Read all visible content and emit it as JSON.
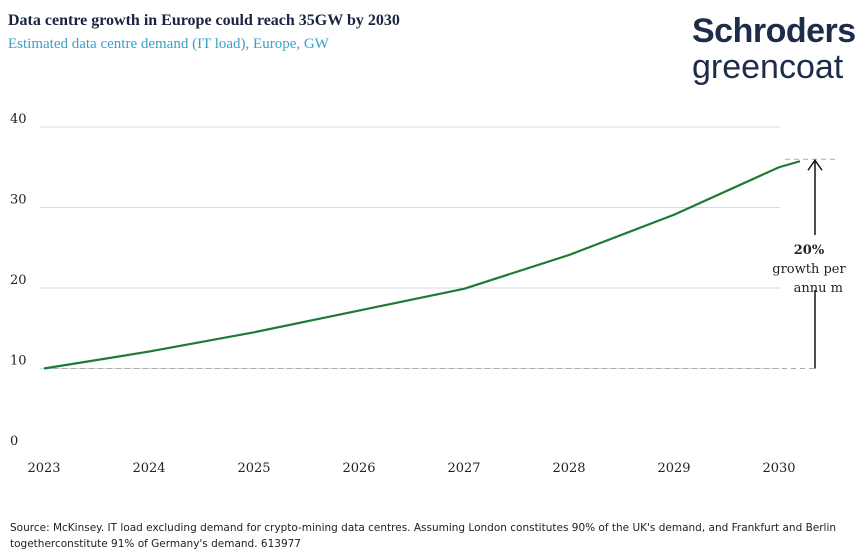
{
  "logo": {
    "line1": "Schroders",
    "line2": "greencoat"
  },
  "footer": {
    "source": "Source: McKinsey. IT load excluding demand for crypto-mining data centres. Assuming London constitutes 90% of the UK's demand, and Frankfurt and Berlin togetherconstitute 91% of Germany's demand. 613977"
  },
  "chart_data": {
    "type": "line",
    "title": "Data centre growth in Europe could reach 35GW by 2030",
    "subtitle": "Estimated data centre demand (IT load), Europe, GW",
    "x": [
      2023,
      2024,
      2025,
      2026,
      2027,
      2028,
      2029,
      2030
    ],
    "series": [
      {
        "values": [
          10,
          12.1,
          14.5,
          17.2,
          19.9,
          24.1,
          29.1,
          35
        ],
        "color": "#1e7a34"
      }
    ],
    "xticks": [
      "2023",
      "2024",
      "2025",
      "2026",
      "2027",
      "2028",
      "2029",
      "2030"
    ],
    "yticks": [
      "0",
      "10",
      "20",
      "30",
      "40"
    ],
    "ylim": [
      0,
      40
    ],
    "grid": "horizontal",
    "annotation": {
      "bold": "20%",
      "line2": "growth per",
      "line3": "annu  m",
      "from": 10,
      "to": 35
    }
  }
}
